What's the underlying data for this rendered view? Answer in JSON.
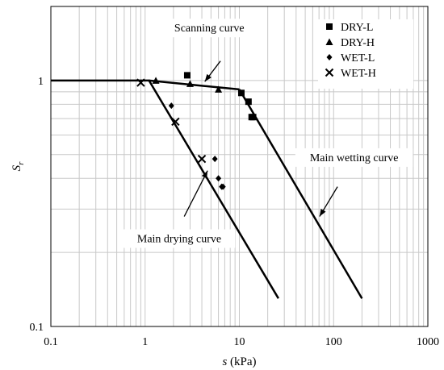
{
  "chart_data": {
    "type": "scatter",
    "xlabel": "s (kPa)",
    "ylabel": "Sr",
    "x_scale": "log",
    "y_scale": "log",
    "xlim": [
      0.1,
      1000
    ],
    "ylim": [
      0.1,
      2
    ],
    "grid": true,
    "x_ticks": [
      {
        "value": 0.1,
        "label": "0.1"
      },
      {
        "value": 1,
        "label": "1"
      },
      {
        "value": 10,
        "label": "10"
      },
      {
        "value": 100,
        "label": "100"
      },
      {
        "value": 1000,
        "label": "1000"
      }
    ],
    "y_ticks": [
      {
        "value": 0.1,
        "label": "0.1"
      },
      {
        "value": 1,
        "label": "1"
      }
    ],
    "legend_position": "top-right",
    "series": [
      {
        "name": "DRY-L",
        "marker": "square",
        "points": [
          [
            2.8,
            1.05
          ],
          [
            10.5,
            0.89
          ],
          [
            12.5,
            0.82
          ],
          [
            13.5,
            0.71
          ],
          [
            14.0,
            0.71
          ]
        ]
      },
      {
        "name": "DRY-H",
        "marker": "triangle",
        "points": [
          [
            1.3,
            1.0
          ],
          [
            3.0,
            0.97
          ],
          [
            6.0,
            0.92
          ]
        ]
      },
      {
        "name": "WET-L",
        "marker": "diamond",
        "points": [
          [
            1.9,
            0.79
          ],
          [
            5.5,
            0.48
          ],
          [
            6.0,
            0.4
          ],
          [
            6.5,
            0.37
          ],
          [
            6.7,
            0.37
          ]
        ]
      },
      {
        "name": "WET-H",
        "marker": "cross",
        "points": [
          [
            0.9,
            0.98
          ],
          [
            2.1,
            0.68
          ],
          [
            4.0,
            0.48
          ]
        ]
      }
    ],
    "curves": [
      {
        "name": "Main drying curve",
        "points": [
          [
            0.1,
            1.0
          ],
          [
            1.1,
            1.0
          ],
          [
            26,
            0.13
          ]
        ]
      },
      {
        "name": "Scanning curve",
        "points": [
          [
            1.1,
            1.0
          ],
          [
            10,
            0.92
          ]
        ]
      },
      {
        "name": "Main wetting curve",
        "points": [
          [
            10,
            0.92
          ],
          [
            200,
            0.13
          ]
        ]
      }
    ],
    "annotations": [
      {
        "text": "Scanning curve",
        "label_at": [
          4.8,
          1.58
        ],
        "arrow_from": [
          6.3,
          1.2
        ],
        "arrow_to": [
          4.3,
          0.99
        ]
      },
      {
        "text": "Main wetting curve",
        "label_at": [
          165,
          0.47
        ],
        "arrow_from": [
          110,
          0.37
        ],
        "arrow_to": [
          71,
          0.28
        ]
      },
      {
        "text": "Main drying curve",
        "label_at": [
          2.3,
          0.22
        ],
        "arrow_from": [
          2.6,
          0.28
        ],
        "arrow_to": [
          4.6,
          0.43
        ]
      }
    ]
  }
}
